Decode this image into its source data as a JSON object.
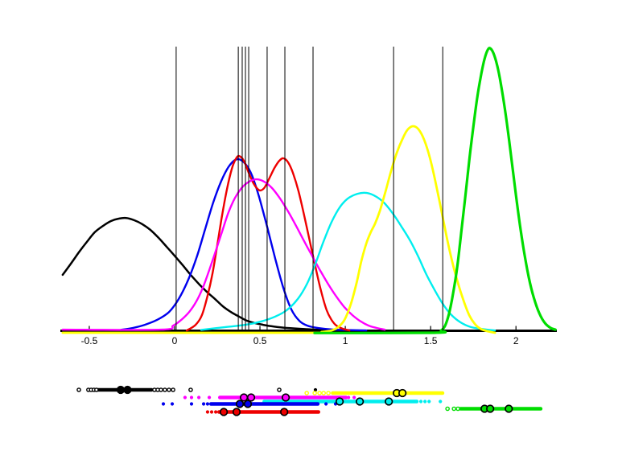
{
  "figure": {
    "background": "#ffffff"
  },
  "chart_data": {
    "type": "line",
    "title": "",
    "xlabel": "",
    "ylabel": "",
    "x_axis": {
      "ticks": [
        -0.5,
        0,
        0.5,
        1,
        1.5,
        2
      ],
      "tick_labels": [
        "-0.5",
        "0",
        "0.5",
        "1",
        "1.5",
        "2"
      ],
      "range": [
        -0.67,
        2.24
      ]
    },
    "grid": false,
    "legend": null,
    "vertical_lines": [
      0.009,
      0.373,
      0.396,
      0.415,
      0.434,
      0.542,
      0.646,
      0.811,
      1.283,
      1.571
    ],
    "series": [
      {
        "name": "black",
        "color": "#000000",
        "width": 2.5,
        "points": [
          [
            -0.656,
            0.197
          ],
          [
            -0.608,
            0.236
          ],
          [
            -0.561,
            0.276
          ],
          [
            -0.514,
            0.313
          ],
          [
            -0.467,
            0.347
          ],
          [
            -0.42,
            0.369
          ],
          [
            -0.373,
            0.386
          ],
          [
            -0.325,
            0.395
          ],
          [
            -0.283,
            0.397
          ],
          [
            -0.236,
            0.389
          ],
          [
            -0.189,
            0.375
          ],
          [
            -0.142,
            0.355
          ],
          [
            -0.094,
            0.327
          ],
          [
            -0.047,
            0.296
          ],
          [
            0.0,
            0.264
          ],
          [
            0.047,
            0.231
          ],
          [
            0.094,
            0.197
          ],
          [
            0.142,
            0.165
          ],
          [
            0.189,
            0.137
          ],
          [
            0.236,
            0.112
          ],
          [
            0.283,
            0.086
          ],
          [
            0.33,
            0.066
          ],
          [
            0.377,
            0.05
          ],
          [
            0.425,
            0.035
          ],
          [
            0.472,
            0.027
          ],
          [
            0.519,
            0.021
          ],
          [
            0.566,
            0.016
          ],
          [
            0.637,
            0.011
          ],
          [
            0.731,
            0.007
          ],
          [
            0.825,
            0.004
          ],
          [
            0.967,
            0.001
          ],
          [
            1.203,
            0.0
          ]
        ]
      },
      {
        "name": "blue",
        "color": "#0000ee",
        "width": 2.4,
        "points": [
          [
            -0.316,
            0.003
          ],
          [
            -0.245,
            0.01
          ],
          [
            -0.175,
            0.021
          ],
          [
            -0.104,
            0.038
          ],
          [
            -0.033,
            0.066
          ],
          [
            0.024,
            0.112
          ],
          [
            0.08,
            0.18
          ],
          [
            0.132,
            0.264
          ],
          [
            0.179,
            0.358
          ],
          [
            0.226,
            0.451
          ],
          [
            0.274,
            0.528
          ],
          [
            0.321,
            0.581
          ],
          [
            0.368,
            0.604
          ],
          [
            0.415,
            0.587
          ],
          [
            0.453,
            0.547
          ],
          [
            0.495,
            0.471
          ],
          [
            0.542,
            0.366
          ],
          [
            0.59,
            0.253
          ],
          [
            0.637,
            0.151
          ],
          [
            0.684,
            0.075
          ],
          [
            0.731,
            0.035
          ],
          [
            0.778,
            0.018
          ],
          [
            0.84,
            0.01
          ],
          [
            0.934,
            0.004
          ],
          [
            1.123,
            0.001
          ]
        ]
      },
      {
        "name": "red",
        "color": "#ee0000",
        "width": 2.4,
        "points": [
          [
            0.071,
            0.001
          ],
          [
            0.123,
            0.021
          ],
          [
            0.16,
            0.055
          ],
          [
            0.193,
            0.123
          ],
          [
            0.222,
            0.202
          ],
          [
            0.25,
            0.301
          ],
          [
            0.278,
            0.406
          ],
          [
            0.307,
            0.499
          ],
          [
            0.335,
            0.57
          ],
          [
            0.358,
            0.604
          ],
          [
            0.377,
            0.615
          ],
          [
            0.406,
            0.598
          ],
          [
            0.434,
            0.556
          ],
          [
            0.462,
            0.519
          ],
          [
            0.486,
            0.499
          ],
          [
            0.505,
            0.494
          ],
          [
            0.528,
            0.505
          ],
          [
            0.557,
            0.539
          ],
          [
            0.585,
            0.573
          ],
          [
            0.613,
            0.598
          ],
          [
            0.637,
            0.607
          ],
          [
            0.665,
            0.593
          ],
          [
            0.693,
            0.556
          ],
          [
            0.726,
            0.491
          ],
          [
            0.759,
            0.406
          ],
          [
            0.792,
            0.315
          ],
          [
            0.825,
            0.225
          ],
          [
            0.858,
            0.14
          ],
          [
            0.891,
            0.072
          ],
          [
            0.92,
            0.038
          ],
          [
            0.948,
            0.018
          ],
          [
            0.986,
            0.007
          ],
          [
            1.024,
            0.001
          ]
        ]
      },
      {
        "name": "magenta",
        "color": "#ff00ff",
        "width": 2.4,
        "points": [
          [
            -0.656,
            0.004
          ],
          [
            -0.08,
            0.004
          ],
          [
            -0.009,
            0.018
          ],
          [
            0.038,
            0.038
          ],
          [
            0.085,
            0.066
          ],
          [
            0.127,
            0.103
          ],
          [
            0.165,
            0.151
          ],
          [
            0.203,
            0.214
          ],
          [
            0.241,
            0.281
          ],
          [
            0.278,
            0.349
          ],
          [
            0.316,
            0.417
          ],
          [
            0.354,
            0.468
          ],
          [
            0.392,
            0.502
          ],
          [
            0.429,
            0.522
          ],
          [
            0.476,
            0.533
          ],
          [
            0.524,
            0.525
          ],
          [
            0.571,
            0.502
          ],
          [
            0.618,
            0.465
          ],
          [
            0.665,
            0.42
          ],
          [
            0.712,
            0.369
          ],
          [
            0.759,
            0.315
          ],
          [
            0.807,
            0.262
          ],
          [
            0.854,
            0.211
          ],
          [
            0.901,
            0.163
          ],
          [
            0.948,
            0.12
          ],
          [
            0.995,
            0.083
          ],
          [
            1.042,
            0.055
          ],
          [
            1.09,
            0.033
          ],
          [
            1.137,
            0.018
          ],
          [
            1.184,
            0.01
          ],
          [
            1.231,
            0.004
          ]
        ]
      },
      {
        "name": "cyan",
        "color": "#00eeee",
        "width": 2.4,
        "points": [
          [
            0.156,
            0.003
          ],
          [
            0.297,
            0.013
          ],
          [
            0.415,
            0.021
          ],
          [
            0.509,
            0.033
          ],
          [
            0.59,
            0.05
          ],
          [
            0.656,
            0.072
          ],
          [
            0.722,
            0.112
          ],
          [
            0.778,
            0.168
          ],
          [
            0.825,
            0.236
          ],
          [
            0.873,
            0.315
          ],
          [
            0.92,
            0.383
          ],
          [
            0.967,
            0.434
          ],
          [
            1.014,
            0.465
          ],
          [
            1.071,
            0.482
          ],
          [
            1.127,
            0.485
          ],
          [
            1.184,
            0.471
          ],
          [
            1.231,
            0.448
          ],
          [
            1.283,
            0.409
          ],
          [
            1.335,
            0.361
          ],
          [
            1.382,
            0.315
          ],
          [
            1.429,
            0.259
          ],
          [
            1.476,
            0.197
          ],
          [
            1.524,
            0.143
          ],
          [
            1.571,
            0.095
          ],
          [
            1.618,
            0.058
          ],
          [
            1.674,
            0.03
          ],
          [
            1.736,
            0.013
          ],
          [
            1.806,
            0.006
          ],
          [
            1.877,
            0.001
          ]
        ]
      },
      {
        "name": "yellow",
        "color": "#ffff00",
        "width": 2.8,
        "points": [
          [
            -0.656,
            -0.007
          ],
          [
            0.769,
            -0.007
          ],
          [
            0.863,
            -0.004
          ],
          [
            0.92,
            0.001
          ],
          [
            0.958,
            0.013
          ],
          [
            0.995,
            0.038
          ],
          [
            1.033,
            0.095
          ],
          [
            1.066,
            0.168
          ],
          [
            1.094,
            0.245
          ],
          [
            1.123,
            0.307
          ],
          [
            1.151,
            0.349
          ],
          [
            1.175,
            0.378
          ],
          [
            1.203,
            0.423
          ],
          [
            1.236,
            0.491
          ],
          [
            1.269,
            0.564
          ],
          [
            1.302,
            0.627
          ],
          [
            1.335,
            0.675
          ],
          [
            1.363,
            0.706
          ],
          [
            1.396,
            0.72
          ],
          [
            1.429,
            0.709
          ],
          [
            1.462,
            0.672
          ],
          [
            1.495,
            0.61
          ],
          [
            1.528,
            0.525
          ],
          [
            1.561,
            0.429
          ],
          [
            1.594,
            0.33
          ],
          [
            1.627,
            0.242
          ],
          [
            1.66,
            0.168
          ],
          [
            1.693,
            0.106
          ],
          [
            1.726,
            0.055
          ],
          [
            1.759,
            0.024
          ],
          [
            1.792,
            0.007
          ],
          [
            1.83,
            -0.001
          ],
          [
            1.877,
            -0.007
          ]
        ]
      },
      {
        "name": "green",
        "color": "#00dd00",
        "width": 3.2,
        "points": [
          [
            0.82,
            -0.008
          ],
          [
            1.524,
            -0.007
          ],
          [
            1.561,
            0.001
          ],
          [
            1.585,
            0.018
          ],
          [
            1.608,
            0.061
          ],
          [
            1.632,
            0.132
          ],
          [
            1.656,
            0.225
          ],
          [
            1.679,
            0.344
          ],
          [
            1.703,
            0.471
          ],
          [
            1.726,
            0.598
          ],
          [
            1.75,
            0.717
          ],
          [
            1.774,
            0.825
          ],
          [
            1.797,
            0.904
          ],
          [
            1.816,
            0.957
          ],
          [
            1.835,
            0.989
          ],
          [
            1.849,
            0.994
          ],
          [
            1.868,
            0.977
          ],
          [
            1.887,
            0.941
          ],
          [
            1.906,
            0.887
          ],
          [
            1.929,
            0.805
          ],
          [
            1.953,
            0.703
          ],
          [
            1.976,
            0.593
          ],
          [
            2.0,
            0.477
          ],
          [
            2.024,
            0.369
          ],
          [
            2.047,
            0.279
          ],
          [
            2.075,
            0.188
          ],
          [
            2.104,
            0.117
          ],
          [
            2.137,
            0.061
          ],
          [
            2.17,
            0.027
          ],
          [
            2.203,
            0.01
          ],
          [
            2.231,
            0.004
          ]
        ]
      }
    ],
    "rug": [
      {
        "name": "black",
        "color": "#000000",
        "dots_open": [
          -0.561,
          -0.505,
          -0.489,
          -0.473,
          -0.458,
          -0.118,
          -0.099,
          -0.08,
          -0.057,
          -0.033,
          -0.009,
          0.094,
          0.613
        ],
        "dots_filled": [
          0.825
        ],
        "bar": [
          -0.449,
          -0.134
        ],
        "big": [
          -0.316,
          -0.276
        ]
      },
      {
        "name": "yellow",
        "color": "#ffff00",
        "dots_open": [
          0.774,
          0.821,
          0.849,
          0.873,
          0.901
        ],
        "dots_filled": [],
        "bar": [
          0.925,
          1.571
        ],
        "big": [
          1.302,
          1.335
        ]
      },
      {
        "name": "magenta",
        "color": "#ff00ff",
        "dots_open": [],
        "dots_filled": [
          0.061,
          0.099,
          0.142,
          0.203,
          1.019,
          1.052
        ],
        "bar": [
          0.264,
          1.005
        ],
        "big": [
          0.406,
          0.448,
          0.651
        ]
      },
      {
        "name": "cyan",
        "color": "#00eeee",
        "dots_open": [],
        "dots_filled": [
          1.443,
          1.467,
          1.491,
          1.557
        ],
        "bar": [
          0.524,
          1.42
        ],
        "big": [
          0.967,
          1.085,
          1.255
        ]
      },
      {
        "name": "blue",
        "color": "#0000ee",
        "dots_open": [],
        "dots_filled": [
          -0.066,
          -0.014,
          0.099,
          0.17,
          0.193,
          0.887,
          0.943,
          1.085
        ],
        "bar": [
          0.212,
          0.84
        ],
        "big": [
          0.382,
          0.429
        ]
      },
      {
        "name": "green",
        "color": "#00dd00",
        "dots_open": [
          1.599,
          1.637,
          1.66
        ],
        "dots_filled": [],
        "bar": [
          1.674,
          2.146
        ],
        "big": [
          1.816,
          1.849,
          1.958
        ]
      },
      {
        "name": "red",
        "color": "#ee0000",
        "dots_open": [],
        "dots_filled": [
          0.193,
          0.217,
          0.241
        ],
        "bar": [
          0.259,
          0.844
        ],
        "big": [
          0.288,
          0.363,
          0.642
        ]
      }
    ]
  }
}
